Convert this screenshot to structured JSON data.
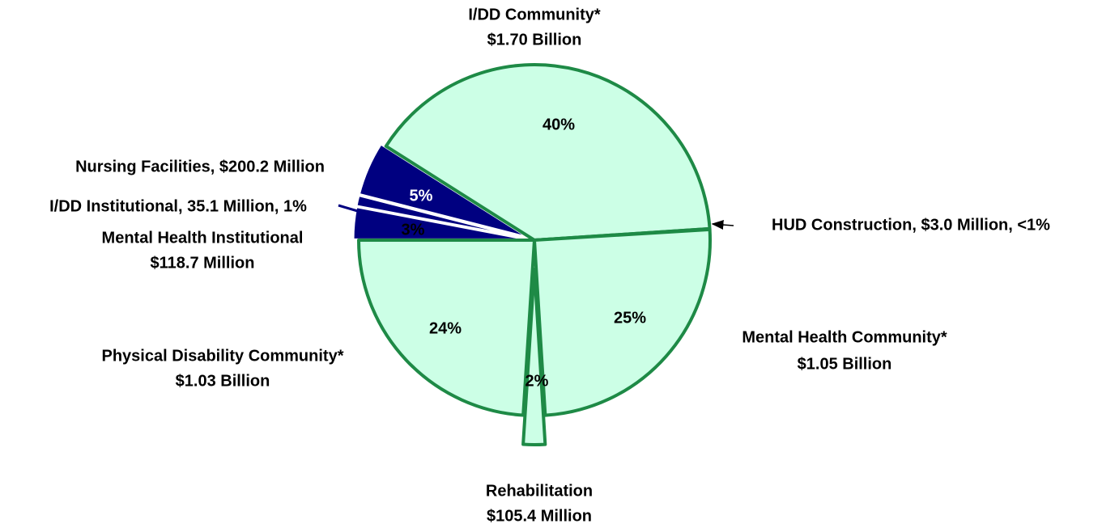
{
  "chart_data": {
    "type": "pie",
    "categories": [
      "Mental Health Institutional",
      "I/DD Institutional, 35.1 Million, 1%",
      "Nursing Facilities, $200.2 Million",
      "I/DD Community*",
      "HUD Construction, $3.0 Million, <1%",
      "Mental Health Community*",
      "Rehabilitation",
      "Physical Disability Community*"
    ],
    "amounts": [
      "$118.7 Million",
      null,
      null,
      "$1.70 Billion",
      null,
      "$1.05 Billion",
      "$105.4 Million",
      "$1.03 Billion"
    ],
    "values": [
      3,
      1,
      5,
      40,
      0.07,
      25,
      2,
      24
    ],
    "value_labels": [
      "3%",
      null,
      "5%",
      "40%",
      null,
      "25%",
      "2%",
      "24%"
    ],
    "colors": [
      "#000080",
      "#000080",
      "#000080",
      "#ccffe6",
      "#ccffe6",
      "#ccffe6",
      "#ccffe6",
      "#ccffe6"
    ]
  }
}
